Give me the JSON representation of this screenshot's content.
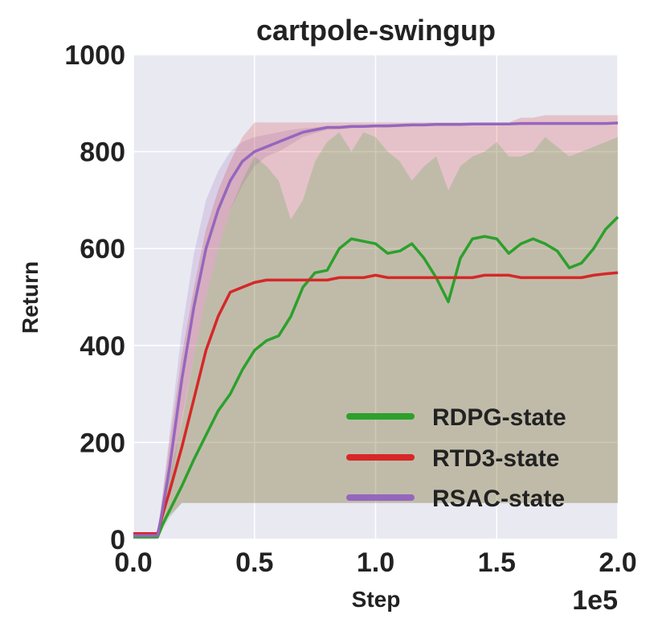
{
  "chart_data": {
    "type": "line",
    "title": "cartpole-swingup",
    "xlabel": "Step",
    "ylabel": "Return",
    "x_offset_label": "1e5",
    "xlim": [
      0,
      2.0
    ],
    "ylim": [
      0,
      1000
    ],
    "x_ticks": [
      "0.0",
      "0.5",
      "1.0",
      "1.5",
      "2.0"
    ],
    "y_ticks": [
      "0",
      "200",
      "400",
      "600",
      "800",
      "1000"
    ],
    "grid": true,
    "legend_position": "lower-right",
    "background": "#e9e9f2",
    "x": [
      0.0,
      0.1,
      0.12,
      0.15,
      0.2,
      0.25,
      0.3,
      0.35,
      0.4,
      0.45,
      0.5,
      0.55,
      0.6,
      0.65,
      0.7,
      0.75,
      0.8,
      0.85,
      0.9,
      0.95,
      1.0,
      1.05,
      1.1,
      1.15,
      1.2,
      1.25,
      1.3,
      1.35,
      1.4,
      1.45,
      1.5,
      1.55,
      1.6,
      1.65,
      1.7,
      1.75,
      1.8,
      1.85,
      1.9,
      1.95,
      2.0
    ],
    "series": [
      {
        "name": "RDPG-state",
        "color": "#2ca02c",
        "values": [
          5,
          5,
          30,
          60,
          110,
          165,
          215,
          265,
          300,
          350,
          390,
          410,
          420,
          460,
          520,
          550,
          555,
          600,
          620,
          615,
          610,
          590,
          595,
          610,
          580,
          540,
          490,
          580,
          620,
          625,
          620,
          590,
          610,
          620,
          610,
          595,
          560,
          570,
          600,
          640,
          665
        ],
        "band_upper": [
          10,
          10,
          60,
          130,
          240,
          380,
          500,
          600,
          680,
          740,
          790,
          770,
          740,
          660,
          700,
          780,
          820,
          840,
          800,
          840,
          830,
          800,
          780,
          740,
          770,
          790,
          720,
          770,
          790,
          800,
          820,
          790,
          790,
          800,
          830,
          810,
          790,
          800,
          810,
          820,
          830
        ],
        "band_lower": [
          0,
          0,
          20,
          45,
          75,
          75,
          75,
          75,
          75,
          75,
          75,
          75,
          75,
          75,
          75,
          75,
          75,
          75,
          75,
          75,
          75,
          75,
          75,
          75,
          75,
          75,
          75,
          75,
          75,
          75,
          75,
          75,
          75,
          75,
          75,
          75,
          75,
          75,
          75,
          75,
          75
        ]
      },
      {
        "name": "RTD3-state",
        "color": "#d62728",
        "values": [
          12,
          12,
          50,
          100,
          190,
          290,
          390,
          460,
          510,
          520,
          530,
          535,
          535,
          535,
          535,
          535,
          535,
          540,
          540,
          540,
          545,
          540,
          540,
          540,
          540,
          540,
          540,
          540,
          540,
          545,
          545,
          545,
          540,
          540,
          540,
          540,
          540,
          540,
          545,
          548,
          550
        ],
        "band_upper": [
          14,
          14,
          90,
          200,
          380,
          520,
          640,
          720,
          780,
          830,
          860,
          860,
          860,
          860,
          860,
          860,
          860,
          860,
          860,
          860,
          860,
          860,
          860,
          860,
          860,
          860,
          860,
          860,
          860,
          860,
          860,
          860,
          870,
          870,
          875,
          875,
          875,
          875,
          875,
          875,
          875
        ],
        "band_lower": [
          10,
          10,
          30,
          50,
          75,
          75,
          75,
          75,
          75,
          75,
          75,
          75,
          75,
          75,
          75,
          75,
          75,
          75,
          75,
          75,
          75,
          75,
          75,
          75,
          75,
          75,
          75,
          75,
          75,
          75,
          75,
          75,
          75,
          75,
          75,
          75,
          75,
          75,
          75,
          75,
          75
        ]
      },
      {
        "name": "RSAC-state",
        "color": "#9467bd",
        "values": [
          8,
          8,
          60,
          150,
          330,
          480,
          600,
          680,
          740,
          780,
          800,
          810,
          820,
          830,
          840,
          845,
          850,
          850,
          852,
          852,
          853,
          853,
          854,
          855,
          855,
          856,
          856,
          856,
          857,
          857,
          857,
          857,
          858,
          858,
          858,
          858,
          858,
          858,
          858,
          858,
          859
        ],
        "band_upper": [
          10,
          10,
          90,
          220,
          430,
          590,
          700,
          760,
          800,
          820,
          830,
          835,
          840,
          845,
          848,
          850,
          852,
          853,
          854,
          855,
          855,
          856,
          856,
          857,
          857,
          857,
          858,
          858,
          858,
          858,
          858,
          859,
          859,
          859,
          859,
          860,
          860,
          860,
          860,
          860,
          860
        ],
        "band_lower": [
          6,
          6,
          40,
          100,
          250,
          380,
          500,
          600,
          680,
          730,
          770,
          790,
          800,
          815,
          830,
          838,
          845,
          846,
          848,
          849,
          850,
          850,
          851,
          852,
          852,
          853,
          853,
          853,
          854,
          854,
          854,
          854,
          855,
          855,
          855,
          855,
          855,
          855,
          855,
          856,
          856
        ]
      }
    ]
  }
}
